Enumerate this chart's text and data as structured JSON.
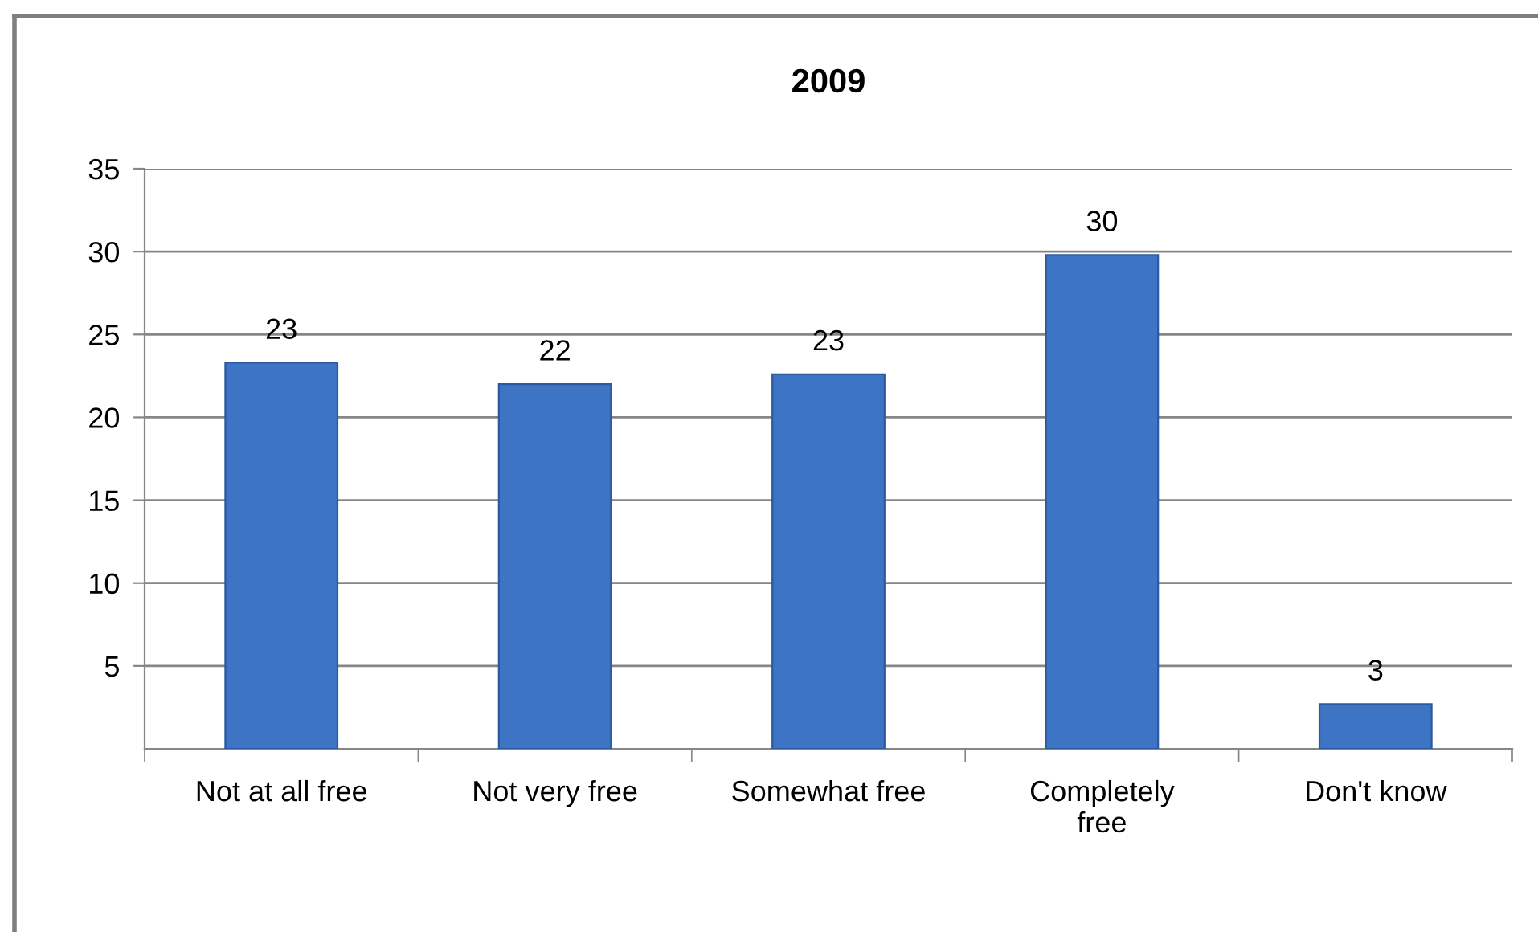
{
  "chart_data": {
    "type": "bar",
    "title": "2009",
    "categories": [
      "Not at all free",
      "Not very free",
      "Somewhat free",
      "Completely\nfree",
      "Don't know"
    ],
    "values": [
      23.3,
      22,
      22.6,
      29.8,
      2.7
    ],
    "value_labels": [
      "23",
      "22",
      "23",
      "30",
      "3"
    ],
    "color": "#3d74c4",
    "ylim": [
      0,
      35
    ],
    "yticks": [
      5,
      10,
      15,
      20,
      25,
      30,
      35
    ],
    "grid": "y",
    "legend": false
  }
}
